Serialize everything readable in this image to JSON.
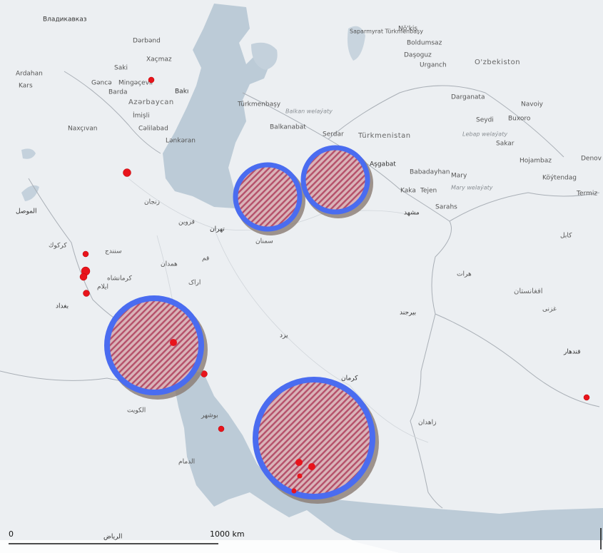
{
  "labels": [
    "Владикавказ",
    "Dərbənd",
    "Xaçmaz",
    "Saki",
    "Ardahan",
    "Kars",
    "Gəncə",
    "Mingəçevir",
    "Barda",
    "Bakı",
    "Azərbaycan",
    "İmişli",
    "Naxçıvan",
    "Cəlilabad",
    "Lənkəran",
    "Saparmyrat Türkmenbaşy",
    "Nö'kis",
    "Boldumsaz",
    "Daşoguz",
    "Urganch",
    "O'zbekiston",
    "Darganata",
    "Navoiy",
    "Buxoro",
    "Seydi",
    "Türkmenbaşy",
    "Balkan welaýaty",
    "Balkanabat",
    "Serdar",
    "Türkmenistan",
    "Aşgabat",
    "Babadayhan",
    "Mary",
    "Kaka",
    "Tejen",
    "Mary welaýaty",
    "Sarahs",
    "Sakar",
    "Hojambaz",
    "Köýtendag",
    "Denov",
    "Termiz",
    "Lebap welaýaty",
    "تهران",
    "قزوين",
    "زنجان",
    "همدان",
    "سمنان",
    "مشهد",
    "بيرجند",
    "يزد",
    "كرمان",
    "قم",
    "اراک",
    "ايلام",
    "بغداد",
    "الكويت",
    "الرياض",
    "الدمام",
    "قندهار",
    "افغانستان",
    "الموصل",
    "كركوك",
    "سنندج",
    "كرمانشاه",
    "بوشهر",
    "هرات",
    "زاهدان",
    "کابل",
    "غزنی"
  ],
  "scale": {
    "start": "0",
    "end": "1000 km"
  }
}
